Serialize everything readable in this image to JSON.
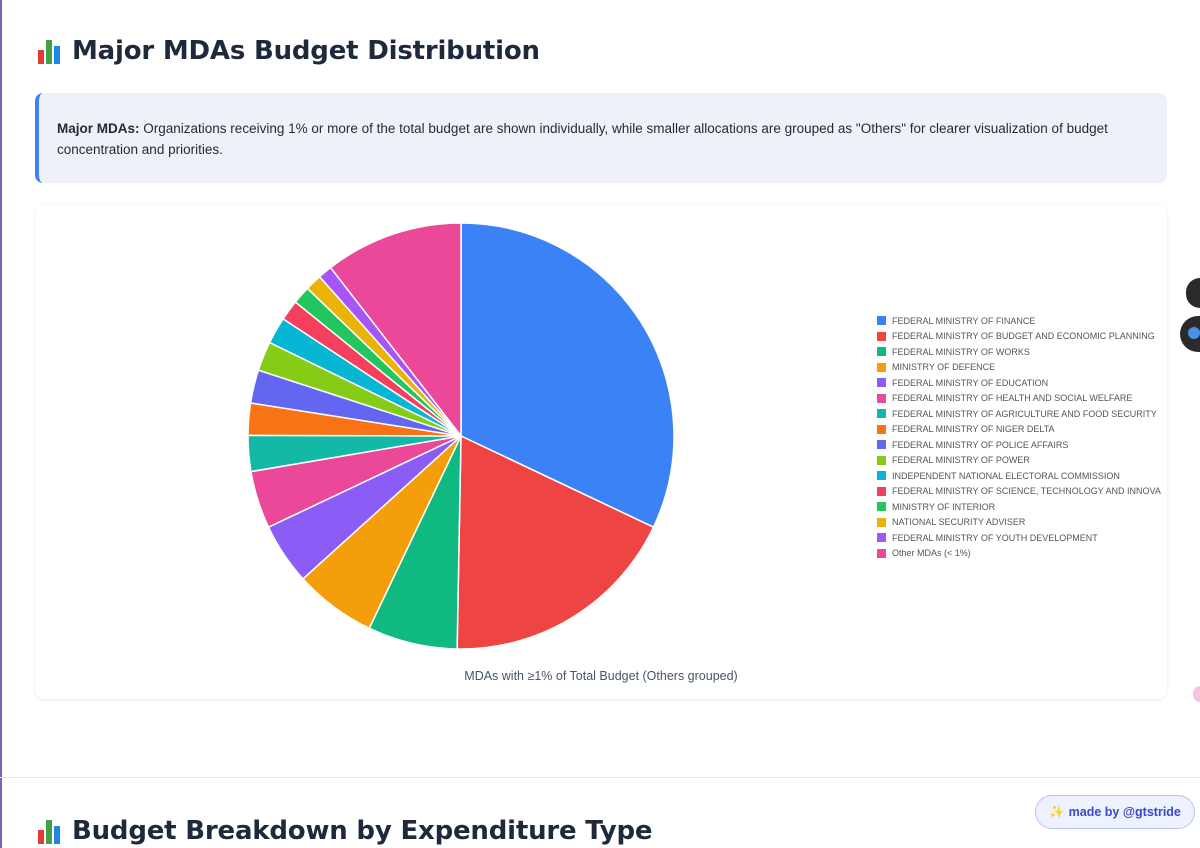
{
  "section1": {
    "title": "Major MDAs Budget Distribution"
  },
  "info": {
    "label": "Major MDAs:",
    "text": " Organizations receiving 1% or more of the total budget are shown individually, while smaller allocations are grouped as \"Others\" for clearer visualization of budget concentration and priorities."
  },
  "section2": {
    "title": "Budget Breakdown by Expenditure Type"
  },
  "badge": {
    "icon": "sparkles-icon",
    "text": "made by @gtstride"
  },
  "chart_data": {
    "type": "pie",
    "title": "",
    "caption": "MDAs with ≥1% of Total Budget (Others grouped)",
    "legend_position": "right",
    "labels": [
      "FEDERAL MINISTRY OF FINANCE",
      "FEDERAL MINISTRY OF BUDGET AND ECONOMIC PLANNING",
      "FEDERAL MINISTRY OF WORKS",
      "MINISTRY OF DEFENCE",
      "FEDERAL MINISTRY OF EDUCATION",
      "FEDERAL MINISTRY OF HEALTH AND SOCIAL WELFARE",
      "FEDERAL MINISTRY OF AGRICULTURE AND FOOD SECURITY",
      "FEDERAL MINISTRY OF NIGER DELTA",
      "FEDERAL MINISTRY OF POLICE AFFAIRS",
      "FEDERAL MINISTRY OF POWER",
      "INDEPENDENT NATIONAL ELECTORAL COMMISSION",
      "FEDERAL MINISTRY OF SCIENCE, TECHNOLOGY AND INNOVA",
      "MINISTRY OF INTERIOR",
      "NATIONAL SECURITY ADVISER",
      "FEDERAL MINISTRY OF YOUTH DEVELOPMENT",
      "Other MDAs (< 1%)"
    ],
    "values": [
      33.0,
      18.8,
      7.0,
      6.4,
      4.8,
      4.5,
      2.8,
      2.5,
      2.6,
      2.3,
      2.1,
      1.6,
      1.4,
      1.3,
      1.1,
      10.8
    ],
    "colors": [
      "#3b82f6",
      "#ef4444",
      "#10b981",
      "#f59e0b",
      "#8b5cf6",
      "#ec4899",
      "#14b8a6",
      "#f97316",
      "#6366f1",
      "#84cc16",
      "#06b6d4",
      "#f43f5e",
      "#22c55e",
      "#eab308",
      "#a855f7",
      "#ec4899"
    ]
  }
}
